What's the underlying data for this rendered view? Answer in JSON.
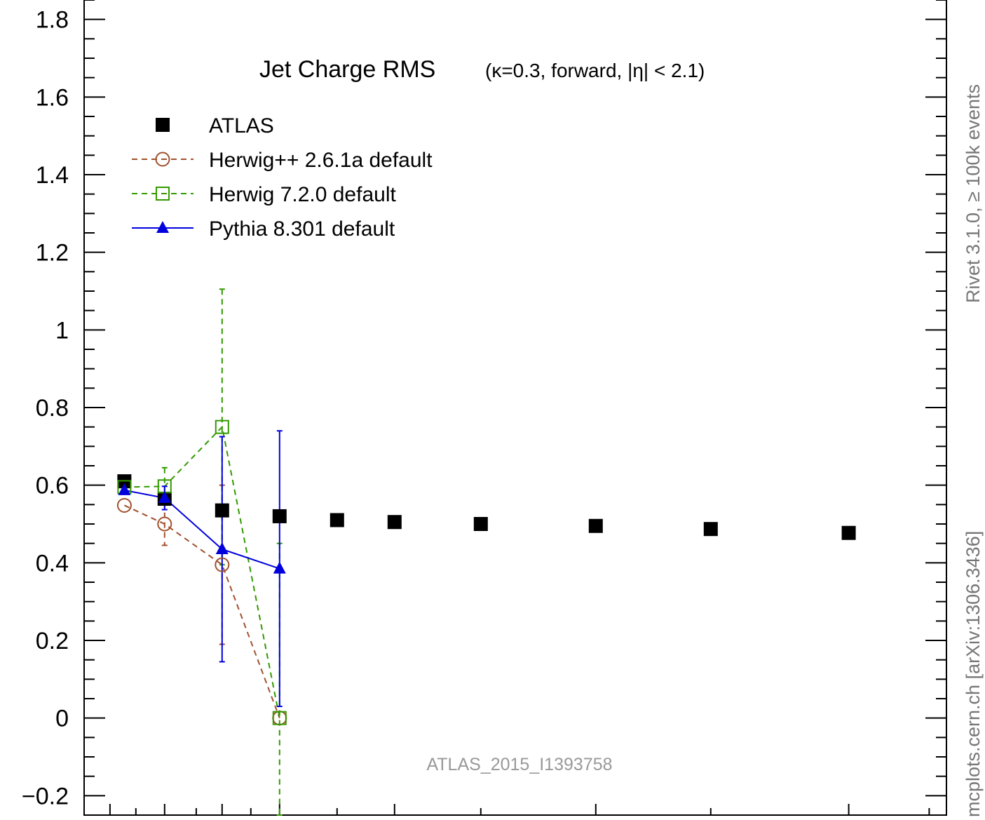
{
  "chart_data": {
    "type": "scatter",
    "title": "Jet Charge RMS",
    "subtitle": "(κ=0.3, forward, |η| < 2.1)",
    "xlabel": "",
    "ylabel": "",
    "xlim": [
      0,
      15
    ],
    "ylim": [
      -0.25,
      1.85
    ],
    "yticks": [
      -0.2,
      0,
      0.2,
      0.4,
      0.6,
      0.8,
      1,
      1.2,
      1.4,
      1.6,
      1.8
    ],
    "ytick_labels": [
      "−0.2",
      "0",
      "0.2",
      "0.4",
      "0.6",
      "0.8",
      "1",
      "1.2",
      "1.4",
      "1.6",
      "1.8"
    ],
    "legend_position": "top-left",
    "series": [
      {
        "name": "ATLAS",
        "style": "black filled squares",
        "color": "#000000",
        "x": [
          0.7,
          1.4,
          2.4,
          3.4,
          4.4,
          5.4,
          6.9,
          8.9,
          10.9,
          13.3
        ],
        "y": [
          0.61,
          0.565,
          0.535,
          0.52,
          0.51,
          0.505,
          0.5,
          0.495,
          0.487,
          0.477
        ]
      },
      {
        "name": "Herwig++ 2.6.1a default",
        "style": "dashed line, open circles",
        "color": "#a0522d",
        "x": [
          0.7,
          1.4,
          2.4,
          3.4
        ],
        "y": [
          0.548,
          0.5,
          0.395,
          0.0
        ],
        "err": [
          0.0,
          0.055,
          0.205,
          0.0
        ]
      },
      {
        "name": "Herwig 7.2.0 default",
        "style": "dashed line, open squares",
        "color": "#339900",
        "x": [
          0.7,
          1.4,
          2.4,
          3.4
        ],
        "y": [
          0.595,
          0.597,
          0.75,
          0.0
        ],
        "err": [
          0.0,
          0.048,
          0.355,
          0.45
        ]
      },
      {
        "name": "Pythia 8.301 default",
        "style": "solid line, filled triangles",
        "color": "#0000dd",
        "x": [
          0.7,
          1.4,
          2.4,
          3.4
        ],
        "y": [
          0.587,
          0.567,
          0.435,
          0.385
        ],
        "err": [
          0.0,
          0.03,
          0.29,
          0.355
        ]
      }
    ]
  },
  "side_text_top": "Rivet 3.1.0, ≥ 100k events",
  "side_text_bottom": "mcplots.cern.ch [arXiv:1306.3436]",
  "watermark": "ATLAS_2015_I1393758"
}
